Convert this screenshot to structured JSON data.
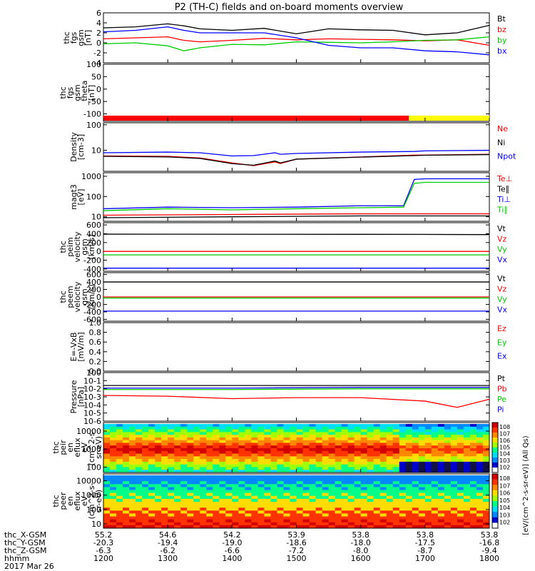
{
  "title": "P2 (TH-C) fields and on-board moments overview",
  "colors": {
    "black": "#000000",
    "red": "#ff0000",
    "green": "#00cc00",
    "blue": "#0000ff",
    "yellow": "#ffff00",
    "lime": "#33dd00"
  },
  "colorbar_label": "[eV/(cm^2-s-sr-eV)] (All Qs)",
  "colorbar_ticks": [
    "10^8",
    "10^7",
    "10^6",
    "10^5",
    "10^4",
    "10^3",
    "10^2"
  ],
  "ephemeris": {
    "row_labels": [
      "thc_X-GSM",
      "thc_Y-GSM",
      "thc_Z-GSM",
      "hhmm",
      "2017 Mar 26"
    ],
    "columns": [
      [
        "55.2",
        "-20.3",
        "-6.3",
        "1200"
      ],
      [
        "54.6",
        "-19.4",
        "-6.2",
        "1300"
      ],
      [
        "54.2",
        "-19.0",
        "-6.6",
        "1400"
      ],
      [
        "53.9",
        "-18.6",
        "-7.2",
        "1500"
      ],
      [
        "53.8",
        "-18.0",
        "-8.0",
        "1600"
      ],
      [
        "53.8",
        "-17.5",
        "-8.7",
        "1700"
      ],
      [
        "53.8",
        "-16.8",
        "-9.4",
        "1800"
      ]
    ]
  },
  "chart_data": [
    {
      "type": "line",
      "panel": "fgs_gsm",
      "ylabel": [
        "thc",
        "fgs",
        "gsm",
        "[nT]"
      ],
      "yticks": [
        "6",
        "4",
        "2",
        "0",
        "-2",
        "-4"
      ],
      "ylim": [
        -4,
        6
      ],
      "xlim_hhmm": [
        "1200",
        "1800"
      ],
      "series": [
        {
          "name": "Bt",
          "color": "black",
          "x": [
            1200,
            1230,
            1300,
            1315,
            1330,
            1400,
            1430,
            1500,
            1530,
            1600,
            1630,
            1700,
            1730,
            1800
          ],
          "y": [
            3.0,
            3.2,
            3.8,
            3.4,
            2.8,
            2.5,
            2.9,
            1.8,
            2.8,
            2.6,
            2.5,
            1.6,
            2.0,
            3.5
          ]
        },
        {
          "name": "bz",
          "color": "red",
          "x": [
            1200,
            1230,
            1300,
            1315,
            1330,
            1400,
            1430,
            1500,
            1530,
            1600,
            1630,
            1700,
            1730,
            1800
          ],
          "y": [
            0.8,
            1.0,
            1.2,
            0.5,
            0.2,
            0.5,
            0.9,
            0.6,
            0.8,
            0.7,
            0.6,
            0.4,
            0.6,
            -0.5
          ]
        },
        {
          "name": "by",
          "color": "green",
          "x": [
            1200,
            1230,
            1300,
            1315,
            1330,
            1400,
            1430,
            1500,
            1530,
            1600,
            1630,
            1700,
            1730,
            1800
          ],
          "y": [
            -0.2,
            0.0,
            -0.6,
            -1.6,
            -1.0,
            -0.3,
            -0.4,
            0.2,
            0.1,
            0.0,
            0.2,
            0.5,
            0.6,
            1.2
          ]
        },
        {
          "name": "bx",
          "color": "blue",
          "x": [
            1200,
            1230,
            1300,
            1315,
            1330,
            1400,
            1430,
            1500,
            1530,
            1600,
            1630,
            1700,
            1730,
            1800
          ],
          "y": [
            2.2,
            2.5,
            3.2,
            2.5,
            2.0,
            2.0,
            2.0,
            1.0,
            -0.5,
            -1.0,
            -1.0,
            -1.6,
            -1.8,
            -2.4
          ]
        }
      ]
    },
    {
      "type": "line",
      "panel": "fgs_gse_theta",
      "ylabel": [
        "thc",
        "fgs",
        "gsm",
        "_theta",
        "[nT]"
      ],
      "yticks": [
        "100",
        "50",
        "0",
        "-50",
        "-100"
      ],
      "ylim": [
        -130,
        100
      ],
      "series": [
        {
          "name": "",
          "color": "green",
          "x": [
            1200,
            1800
          ],
          "y": [
            -115,
            -115
          ]
        }
      ],
      "mode_bar": [
        {
          "from": "1200",
          "to": "1645",
          "color": "red"
        },
        {
          "from": "1645",
          "to": "1800",
          "color": "yellow"
        }
      ]
    },
    {
      "type": "line",
      "panel": "density",
      "ylabel": [
        "Density",
        "[cm-3]"
      ],
      "yscale": "log",
      "yticks": [
        "100",
        "10"
      ],
      "ylim": [
        1.5,
        120
      ],
      "series": [
        {
          "name": "Ne",
          "color": "red",
          "x": [
            1200,
            1300,
            1330,
            1400,
            1420,
            1440,
            1445,
            1500,
            1600,
            1650,
            1700,
            1800
          ],
          "y": [
            6,
            5.8,
            5.0,
            3.2,
            2.5,
            3.5,
            3.0,
            4.5,
            5.5,
            6.5,
            6.5,
            7
          ]
        },
        {
          "name": "Ni",
          "color": "black",
          "x": [
            1200,
            1300,
            1330,
            1400,
            1420,
            1440,
            1445,
            1500,
            1600,
            1650,
            1700,
            1800
          ],
          "y": [
            5.8,
            5.5,
            4.8,
            3.0,
            2.6,
            3.8,
            3.2,
            4.5,
            5.4,
            6.2,
            6.4,
            6.8
          ]
        },
        {
          "name": "Npot",
          "color": "blue",
          "x": [
            1200,
            1300,
            1330,
            1400,
            1420,
            1440,
            1445,
            1500,
            1600,
            1650,
            1700,
            1800
          ],
          "y": [
            8,
            8.5,
            8.0,
            6.0,
            6.2,
            8.0,
            7.0,
            7.5,
            8.5,
            9.0,
            9.5,
            10
          ]
        }
      ]
    },
    {
      "type": "line",
      "panel": "temperature",
      "ylabel": [
        "magt3",
        "[eV]"
      ],
      "yscale": "log",
      "yticks": [
        "1000",
        "100",
        "10"
      ],
      "ylim": [
        6,
        1500
      ],
      "series": [
        {
          "name": "Te⊥",
          "color": "red",
          "x": [
            1200,
            1400,
            1600,
            1645,
            1700,
            1800
          ],
          "y": [
            12,
            13,
            14,
            14,
            14,
            14
          ]
        },
        {
          "name": "Te∥",
          "color": "black",
          "x": [
            1200,
            1400,
            1600,
            1645,
            1700,
            1800
          ],
          "y": [
            9,
            10,
            11,
            11,
            11,
            11
          ]
        },
        {
          "name": "Ti⊥",
          "color": "blue",
          "x": [
            1200,
            1300,
            1400,
            1500,
            1600,
            1640,
            1650,
            1700,
            1800
          ],
          "y": [
            25,
            30,
            28,
            30,
            35,
            35,
            700,
            750,
            750
          ]
        },
        {
          "name": "Ti∥",
          "color": "green",
          "x": [
            1200,
            1300,
            1400,
            1500,
            1600,
            1640,
            1650,
            1700,
            1800
          ],
          "y": [
            20,
            25,
            22,
            25,
            28,
            30,
            450,
            500,
            500
          ]
        }
      ]
    },
    {
      "type": "line",
      "panel": "peim_velocity",
      "ylabel": [
        "thc",
        "peim",
        "velocity",
        "gsm",
        "[km/s]"
      ],
      "yticks": [
        "600",
        "400",
        "200",
        "0",
        "-200",
        "-400"
      ],
      "ylim": [
        -450,
        650
      ],
      "series": [
        {
          "name": "Vt",
          "color": "black",
          "x": [
            1200,
            1650,
            1800
          ],
          "y": [
            390,
            385,
            380
          ]
        },
        {
          "name": "Vz",
          "color": "red",
          "x": [
            1200,
            1800
          ],
          "y": [
            0,
            0
          ]
        },
        {
          "name": "Vy",
          "color": "green",
          "x": [
            1200,
            1800
          ],
          "y": [
            -80,
            -80
          ]
        },
        {
          "name": "Vx",
          "color": "blue",
          "x": [
            1200,
            1800
          ],
          "y": [
            -380,
            -380
          ]
        }
      ]
    },
    {
      "type": "line",
      "panel": "peem_velocity",
      "ylabel": [
        "thc",
        "peem",
        "velocity",
        "gsm",
        "[km/s]"
      ],
      "yticks": [
        "600",
        "400",
        "200",
        "0",
        "-200",
        "-400",
        "-600"
      ],
      "ylim": [
        -650,
        650
      ],
      "series": [
        {
          "name": "Vt",
          "color": "black",
          "x": [
            1200,
            1800
          ],
          "y": [
            400,
            400
          ]
        },
        {
          "name": "Vz",
          "color": "red",
          "x": [
            1200,
            1800
          ],
          "y": [
            0,
            0
          ]
        },
        {
          "name": "Vy",
          "color": "green",
          "x": [
            1200,
            1800
          ],
          "y": [
            -30,
            -30
          ]
        },
        {
          "name": "Vx",
          "color": "blue",
          "x": [
            1200,
            1800
          ],
          "y": [
            -380,
            -380
          ]
        }
      ]
    },
    {
      "type": "line",
      "panel": "efield",
      "ylabel": [
        "E=-VxB",
        "[mV/m]"
      ],
      "yticks": [
        "1.0",
        "0.8",
        "0.6",
        "0.4",
        "0.2",
        "0.0"
      ],
      "ylim": [
        0,
        1
      ],
      "series": [
        {
          "name": "Ez",
          "color": "red",
          "x": [],
          "y": []
        },
        {
          "name": "Ey",
          "color": "green",
          "x": [],
          "y": []
        },
        {
          "name": "Ex",
          "color": "blue",
          "x": [],
          "y": []
        }
      ]
    },
    {
      "type": "line",
      "panel": "pressure",
      "ylabel": [
        "Pressure",
        "[nPa]"
      ],
      "yscale": "log",
      "yticks": [
        "10^0",
        "10^-1",
        "10^-2",
        "10^-3",
        "10^-4",
        "10^-5",
        "10^-6"
      ],
      "ylim": [
        1e-06,
        1
      ],
      "series": [
        {
          "name": "Pt",
          "color": "black",
          "x": [
            1200,
            1400,
            1600,
            1800
          ],
          "y": [
            0.025,
            0.025,
            0.025,
            0.025
          ]
        },
        {
          "name": "Pb",
          "color": "red",
          "x": [
            1200,
            1300,
            1400,
            1500,
            1600,
            1700,
            1730,
            1800
          ],
          "y": [
            0.0015,
            0.0012,
            0.0006,
            0.0008,
            0.0008,
            0.0003,
            5e-05,
            0.0005
          ]
        },
        {
          "name": "Pe",
          "color": "green",
          "x": [
            1200,
            1400,
            1600,
            1800
          ],
          "y": [
            0.008,
            0.008,
            0.01,
            0.01
          ]
        },
        {
          "name": "Pi",
          "color": "blue",
          "x": [
            1200,
            1400,
            1600,
            1800
          ],
          "y": [
            0.012,
            0.012,
            0.015,
            0.015
          ]
        }
      ]
    },
    {
      "type": "heatmap",
      "panel": "peir_en_eflux",
      "ylabel": [
        "thc",
        "peir",
        "en",
        "eflux",
        "eV",
        "(cm^2-s-",
        "sr-eV)"
      ],
      "yscale": "log",
      "yticks": [
        "10000",
        "1000",
        "100"
      ],
      "ylim": [
        50,
        30000
      ]
    },
    {
      "type": "heatmap",
      "panel": "peer_en_eflux",
      "ylabel": [
        "thc",
        "peer",
        "en",
        "eflux",
        "eV",
        "(cm^2-s-",
        "sr-eV)"
      ],
      "yscale": "log",
      "yticks": [
        "10000",
        "1000",
        "100",
        "10"
      ],
      "ylim": [
        5,
        30000
      ]
    }
  ]
}
